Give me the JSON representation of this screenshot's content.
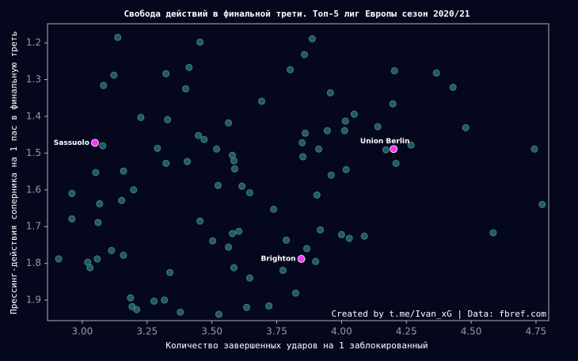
{
  "chart_data": {
    "type": "scatter",
    "title": "Свобода действий в финальной трети. Топ-5 лиг Европы сезон 2020/21",
    "x_label": "Количество завершенных ударов на 1 заблокированный",
    "y_label": "Прессинг-действия соперника на 1 пас в финальную треть",
    "annotation": "Created by t.me/Ivan_xG | Data: fbref.com",
    "xlim": [
      2.866,
      4.799
    ],
    "ylim": [
      1.956,
      1.148
    ],
    "xticks": [
      {
        "value": 3,
        "label": "3.00"
      },
      {
        "value": 3.25,
        "label": "3.25"
      },
      {
        "value": 3.5,
        "label": "3.50"
      },
      {
        "value": 3.75,
        "label": "3.75"
      },
      {
        "value": 4,
        "label": "4.00"
      },
      {
        "value": 4.25,
        "label": "4.25"
      },
      {
        "value": 4.5,
        "label": "4.50"
      },
      {
        "value": 4.75,
        "label": "4.75"
      }
    ],
    "yticks": [
      1.2,
      1.3,
      1.4,
      1.5,
      1.6,
      1.7,
      1.8,
      1.9
    ],
    "color": "#3a8f8c",
    "x": [
      3.137,
      3.454,
      3.887,
      3.857,
      3.412,
      3.122,
      3.323,
      3.082,
      3.802,
      4.204,
      4.366,
      4.43,
      3.399,
      3.957,
      3.692,
      4.198,
      3.226,
      3.329,
      3.564,
      4.049,
      4.015,
      4.14,
      4.479,
      3.448,
      3.47,
      3.86,
      3.945,
      4.012,
      3.848,
      3.079,
      3.29,
      3.518,
      3.912,
      4.171,
      4.268,
      4.744,
      3.579,
      3.851,
      3.405,
      3.323,
      3.585,
      4.21,
      3.588,
      4.018,
      3.96,
      3.159,
      3.052,
      3.524,
      3.616,
      3.198,
      2.96,
      3.646,
      3.905,
      3.152,
      3.067,
      3.738,
      2.96,
      3.454,
      3.061,
      3.918,
      4.774,
      4.585,
      4.0,
      4.088,
      4.03,
      3.579,
      3.604,
      3.503,
      3.787,
      3.564,
      3.113,
      3.866,
      3.159,
      3.058,
      2.909,
      3.021,
      3.9,
      3.03,
      3.585,
      3.774,
      3.338,
      3.646,
      3.823,
      3.186,
      3.317,
      3.277,
      3.72,
      3.634,
      3.192,
      3.21,
      3.378,
      3.527
    ],
    "y": [
      1.185,
      1.198,
      1.189,
      1.232,
      1.267,
      1.288,
      1.284,
      1.316,
      1.273,
      1.276,
      1.282,
      1.321,
      1.325,
      1.336,
      1.359,
      1.366,
      1.403,
      1.409,
      1.418,
      1.394,
      1.413,
      1.428,
      1.431,
      1.452,
      1.463,
      1.446,
      1.439,
      1.439,
      1.472,
      1.48,
      1.487,
      1.489,
      1.489,
      1.491,
      1.478,
      1.489,
      1.506,
      1.51,
      1.523,
      1.528,
      1.521,
      1.528,
      1.543,
      1.545,
      1.56,
      1.549,
      1.553,
      1.588,
      1.59,
      1.6,
      1.61,
      1.608,
      1.614,
      1.629,
      1.638,
      1.653,
      1.679,
      1.685,
      1.689,
      1.709,
      1.64,
      1.717,
      1.722,
      1.726,
      1.732,
      1.719,
      1.713,
      1.739,
      1.737,
      1.756,
      1.765,
      1.76,
      1.778,
      1.788,
      1.788,
      1.797,
      1.795,
      1.812,
      1.812,
      1.819,
      1.825,
      1.84,
      1.881,
      1.894,
      1.9,
      1.903,
      1.916,
      1.92,
      1.918,
      1.926,
      1.933,
      1.939
    ],
    "highlight_color": "#ff33ff",
    "highlights": [
      {
        "label": "Sassuolo",
        "x": 3.049,
        "y": 1.472
      },
      {
        "label": "Union Berlin",
        "x": 4.201,
        "y": 1.489
      },
      {
        "label": "Brighton",
        "x": 3.845,
        "y": 1.788
      }
    ]
  }
}
